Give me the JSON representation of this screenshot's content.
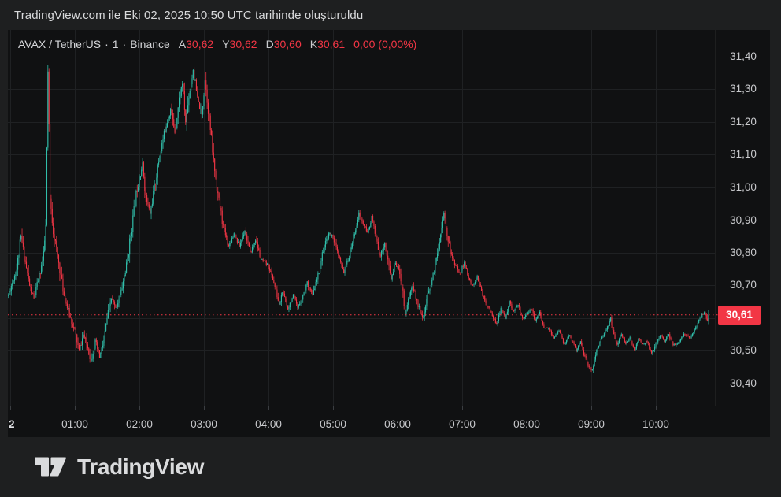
{
  "attribution": {
    "text": "TradingView.com ile Eki 02, 2025 10:50 UTC tarihinde oluşturuldu"
  },
  "header": {
    "symbol": "AVAX / TetherUS",
    "separator": "·",
    "interval": "1",
    "exchange": "Binance",
    "ohlc": [
      {
        "label": "A",
        "value": "30,62"
      },
      {
        "label": "Y",
        "value": "30,62"
      },
      {
        "label": "D",
        "value": "30,60"
      },
      {
        "label": "K",
        "value": "30,61"
      }
    ],
    "change": "0,00 (0,00%)"
  },
  "price_scale": {
    "visible_ticks": [
      "31,40",
      "31,30",
      "31,20",
      "31,10",
      "31,00",
      "30,90",
      "30,80",
      "30,70",
      "30,50",
      "30,40"
    ],
    "last_price_label": "30,61"
  },
  "time_scale": {
    "ticks": [
      {
        "label": "2",
        "minute": 0,
        "day_boundary": true
      },
      {
        "label": "01:00",
        "minute": 60
      },
      {
        "label": "02:00",
        "minute": 120
      },
      {
        "label": "03:00",
        "minute": 180
      },
      {
        "label": "04:00",
        "minute": 240
      },
      {
        "label": "05:00",
        "minute": 300
      },
      {
        "label": "06:00",
        "minute": 360
      },
      {
        "label": "07:00",
        "minute": 420
      },
      {
        "label": "08:00",
        "minute": 480
      },
      {
        "label": "09:00",
        "minute": 540
      },
      {
        "label": "10:00",
        "minute": 600
      }
    ]
  },
  "logo": {
    "text": "TradingView"
  },
  "colors": {
    "up": "#31bfab",
    "down": "#f23645",
    "accent_red": "#f23645",
    "panel_bg": "#101112",
    "outer_bg": "#1e1f20",
    "grid": "#1f2123",
    "axis_text": "#c9cacd",
    "badge_text": "#ffffff"
  },
  "chart_data": {
    "type": "candlestick",
    "symbol": "AVAX / TetherUS",
    "exchange": "Binance",
    "interval": "1 minute",
    "timezone": "UTC",
    "ohlc_current": {
      "open": 30.62,
      "high": 30.62,
      "low": 30.6,
      "close": 30.61,
      "change": 0.0,
      "change_pct": 0.0
    },
    "last_price": 30.61,
    "session_high": 31.37,
    "session_low": 30.42,
    "y_axis": {
      "visible_range": [
        30.333,
        31.417
      ],
      "tick_step": 0.1,
      "levels": [
        31.4,
        31.3,
        31.2,
        31.1,
        31.0,
        30.9,
        30.8,
        30.7,
        30.6,
        30.5,
        30.4
      ],
      "hidden_label_level": 30.6
    },
    "x_axis": {
      "start_time": "23:58",
      "end_time": "10:49",
      "hour_gridlines_minutes": [
        0,
        60,
        120,
        180,
        240,
        300,
        360,
        420,
        480,
        540,
        600
      ]
    },
    "grid": true,
    "legend_position": "none",
    "price_path": [
      [
        -2,
        30.67
      ],
      [
        2,
        30.71
      ],
      [
        6,
        30.75
      ],
      [
        10,
        30.85
      ],
      [
        13,
        30.79
      ],
      [
        18,
        30.7
      ],
      [
        22,
        30.66
      ],
      [
        27,
        30.73
      ],
      [
        31,
        30.79
      ],
      [
        33,
        30.88
      ],
      [
        35,
        31.35
      ],
      [
        36,
        31.18
      ],
      [
        37,
        30.96
      ],
      [
        40,
        30.87
      ],
      [
        44,
        30.79
      ],
      [
        50,
        30.67
      ],
      [
        55,
        30.61
      ],
      [
        60,
        30.56
      ],
      [
        64,
        30.5
      ],
      [
        68,
        30.55
      ],
      [
        72,
        30.51
      ],
      [
        75,
        30.47
      ],
      [
        79,
        30.53
      ],
      [
        83,
        30.48
      ],
      [
        87,
        30.53
      ],
      [
        90,
        30.6
      ],
      [
        94,
        30.66
      ],
      [
        98,
        30.63
      ],
      [
        103,
        30.68
      ],
      [
        108,
        30.76
      ],
      [
        113,
        30.88
      ],
      [
        117,
        30.98
      ],
      [
        120,
        31.03
      ],
      [
        123,
        31.07
      ],
      [
        126,
        30.97
      ],
      [
        130,
        30.92
      ],
      [
        134,
        31.0
      ],
      [
        139,
        31.1
      ],
      [
        144,
        31.18
      ],
      [
        149,
        31.24
      ],
      [
        153,
        31.17
      ],
      [
        157,
        31.27
      ],
      [
        160,
        31.32
      ],
      [
        163,
        31.2
      ],
      [
        166,
        31.28
      ],
      [
        170,
        31.36
      ],
      [
        174,
        31.27
      ],
      [
        178,
        31.22
      ],
      [
        181,
        31.33
      ],
      [
        185,
        31.21
      ],
      [
        189,
        31.08
      ],
      [
        193,
        30.98
      ],
      [
        198,
        30.88
      ],
      [
        203,
        30.82
      ],
      [
        208,
        30.86
      ],
      [
        213,
        30.82
      ],
      [
        218,
        30.87
      ],
      [
        223,
        30.8
      ],
      [
        228,
        30.84
      ],
      [
        233,
        30.78
      ],
      [
        240,
        30.76
      ],
      [
        245,
        30.71
      ],
      [
        250,
        30.64
      ],
      [
        253,
        30.68
      ],
      [
        258,
        30.63
      ],
      [
        263,
        30.67
      ],
      [
        267,
        30.63
      ],
      [
        271,
        30.66
      ],
      [
        276,
        30.71
      ],
      [
        281,
        30.67
      ],
      [
        286,
        30.73
      ],
      [
        291,
        30.81
      ],
      [
        296,
        30.86
      ],
      [
        300,
        30.85
      ],
      [
        305,
        30.79
      ],
      [
        310,
        30.74
      ],
      [
        315,
        30.79
      ],
      [
        320,
        30.86
      ],
      [
        324,
        30.92
      ],
      [
        328,
        30.89
      ],
      [
        332,
        30.86
      ],
      [
        336,
        30.91
      ],
      [
        340,
        30.84
      ],
      [
        344,
        30.79
      ],
      [
        348,
        30.83
      ],
      [
        354,
        30.72
      ],
      [
        358,
        30.77
      ],
      [
        362,
        30.74
      ],
      [
        365,
        30.68
      ],
      [
        367,
        30.61
      ],
      [
        370,
        30.66
      ],
      [
        374,
        30.7
      ],
      [
        379,
        30.64
      ],
      [
        384,
        30.6
      ],
      [
        388,
        30.67
      ],
      [
        393,
        30.73
      ],
      [
        397,
        30.8
      ],
      [
        400,
        30.86
      ],
      [
        403,
        30.92
      ],
      [
        406,
        30.86
      ],
      [
        410,
        30.79
      ],
      [
        414,
        30.76
      ],
      [
        418,
        30.74
      ],
      [
        422,
        30.77
      ],
      [
        426,
        30.72
      ],
      [
        430,
        30.7
      ],
      [
        434,
        30.73
      ],
      [
        438,
        30.68
      ],
      [
        443,
        30.64
      ],
      [
        448,
        30.61
      ],
      [
        452,
        30.58
      ],
      [
        456,
        30.63
      ],
      [
        460,
        30.6
      ],
      [
        464,
        30.65
      ],
      [
        468,
        30.62
      ],
      [
        472,
        30.64
      ],
      [
        476,
        30.6
      ],
      [
        480,
        30.61
      ],
      [
        484,
        30.63
      ],
      [
        488,
        30.59
      ],
      [
        492,
        30.62
      ],
      [
        496,
        30.57
      ],
      [
        500,
        30.57
      ],
      [
        505,
        30.54
      ],
      [
        510,
        30.56
      ],
      [
        515,
        30.52
      ],
      [
        520,
        30.55
      ],
      [
        526,
        30.5
      ],
      [
        530,
        30.53
      ],
      [
        534,
        30.48
      ],
      [
        538,
        30.45
      ],
      [
        541,
        30.44
      ],
      [
        544,
        30.49
      ],
      [
        548,
        30.53
      ],
      [
        552,
        30.55
      ],
      [
        556,
        30.58
      ],
      [
        558,
        30.6
      ],
      [
        561,
        30.55
      ],
      [
        564,
        30.52
      ],
      [
        568,
        30.55
      ],
      [
        572,
        30.52
      ],
      [
        576,
        30.54
      ],
      [
        580,
        30.5
      ],
      [
        584,
        30.54
      ],
      [
        588,
        30.52
      ],
      [
        592,
        30.53
      ],
      [
        596,
        30.49
      ],
      [
        600,
        30.52
      ],
      [
        604,
        30.55
      ],
      [
        608,
        30.53
      ],
      [
        612,
        30.55
      ],
      [
        616,
        30.52
      ],
      [
        620,
        30.52
      ],
      [
        626,
        30.55
      ],
      [
        632,
        30.54
      ],
      [
        637,
        30.57
      ],
      [
        641,
        30.6
      ],
      [
        645,
        30.62
      ],
      [
        647,
        30.6
      ],
      [
        649,
        30.61
      ]
    ]
  }
}
